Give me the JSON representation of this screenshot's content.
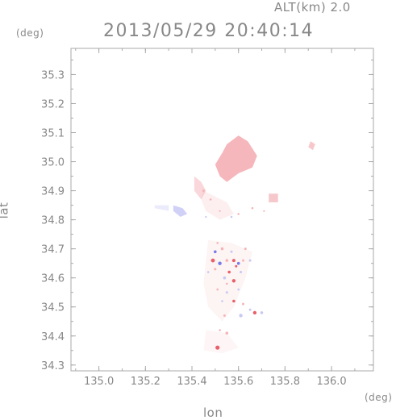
{
  "header": {
    "alt_label": "ALT(km)  2.0",
    "datetime": "2013/05/29  20:40:14"
  },
  "axes": {
    "x_unit": "(deg)",
    "y_unit": "(deg)",
    "xlabel": "lon",
    "ylabel": "lat"
  },
  "chart_data": {
    "type": "scatter",
    "title": "2013/05/29  20:40:14",
    "xlabel": "lon",
    "ylabel": "lat",
    "xlim": [
      134.88,
      136.18
    ],
    "ylim": [
      34.28,
      35.39
    ],
    "x_ticks": [
      135.0,
      135.2,
      135.4,
      135.6,
      135.8,
      136.0
    ],
    "x_tick_labels": [
      "135.0",
      "135.2",
      "135.4",
      "135.6",
      "135.8",
      "136.0"
    ],
    "y_ticks": [
      34.3,
      34.4,
      34.5,
      34.6,
      34.7,
      34.8,
      34.9,
      35.0,
      35.1,
      35.2,
      35.3
    ],
    "y_tick_labels": [
      "34.3",
      "34.4",
      "34.5",
      "34.6",
      "34.7",
      "34.8",
      "34.9",
      "35.0",
      "35.1",
      "35.2",
      "35.3"
    ],
    "grid": false,
    "colors": {
      "positive_strong": "#e8606a",
      "positive_light": "#f6b4b8",
      "negative_strong": "#7a7ae8",
      "negative_light": "#c8c8f2",
      "axis": "#aaaaaa",
      "text": "#888888"
    },
    "regions": [
      {
        "name": "north-mass",
        "polygon": [
          [
            135.55,
            35.06
          ],
          [
            135.6,
            35.09
          ],
          [
            135.64,
            35.07
          ],
          [
            135.68,
            35.02
          ],
          [
            135.66,
            34.98
          ],
          [
            135.6,
            34.96
          ],
          [
            135.55,
            34.93
          ],
          [
            135.52,
            34.95
          ],
          [
            135.5,
            34.99
          ],
          [
            135.53,
            35.03
          ]
        ],
        "sign": "positive",
        "intensity": 0.45
      },
      {
        "name": "west-pink",
        "polygon": [
          [
            135.41,
            34.95
          ],
          [
            135.44,
            34.93
          ],
          [
            135.46,
            34.9
          ],
          [
            135.44,
            34.87
          ],
          [
            135.41,
            34.9
          ]
        ],
        "sign": "positive",
        "intensity": 0.25
      },
      {
        "name": "east-pink",
        "polygon": [
          [
            135.73,
            34.89
          ],
          [
            135.77,
            34.89
          ],
          [
            135.77,
            34.86
          ],
          [
            135.73,
            34.86
          ]
        ],
        "sign": "positive",
        "intensity": 0.35
      },
      {
        "name": "far-east-pink",
        "polygon": [
          [
            135.91,
            35.07
          ],
          [
            135.93,
            35.06
          ],
          [
            135.92,
            35.04
          ],
          [
            135.9,
            35.05
          ]
        ],
        "sign": "positive",
        "intensity": 0.35
      },
      {
        "name": "west-blue",
        "polygon": [
          [
            135.32,
            34.85
          ],
          [
            135.36,
            34.84
          ],
          [
            135.38,
            34.82
          ],
          [
            135.35,
            34.81
          ],
          [
            135.32,
            34.83
          ]
        ],
        "sign": "negative",
        "intensity": 0.35
      },
      {
        "name": "west-faint",
        "polygon": [
          [
            135.24,
            34.85
          ],
          [
            135.3,
            34.85
          ],
          [
            135.3,
            34.83
          ],
          [
            135.24,
            34.84
          ]
        ],
        "sign": "negative",
        "intensity": 0.15
      },
      {
        "name": "mid-faint",
        "polygon": [
          [
            135.45,
            34.9
          ],
          [
            135.5,
            34.88
          ],
          [
            135.55,
            34.86
          ],
          [
            135.58,
            34.82
          ],
          [
            135.52,
            34.8
          ],
          [
            135.46,
            34.83
          ],
          [
            135.44,
            34.87
          ]
        ],
        "sign": "positive",
        "intensity": 0.1
      },
      {
        "name": "central-band",
        "polygon": [
          [
            135.47,
            34.73
          ],
          [
            135.57,
            34.72
          ],
          [
            135.66,
            34.69
          ],
          [
            135.63,
            34.6
          ],
          [
            135.58,
            34.5
          ],
          [
            135.53,
            34.45
          ],
          [
            135.47,
            34.5
          ],
          [
            135.45,
            34.58
          ],
          [
            135.46,
            34.66
          ]
        ],
        "sign": "positive",
        "intensity": 0.07
      },
      {
        "name": "south-tail",
        "polygon": [
          [
            135.46,
            34.42
          ],
          [
            135.55,
            34.41
          ],
          [
            135.6,
            34.36
          ],
          [
            135.53,
            34.34
          ],
          [
            135.45,
            34.35
          ]
        ],
        "sign": "positive",
        "intensity": 0.06
      }
    ],
    "points": [
      {
        "x": 135.51,
        "y": 34.36,
        "v": 0.9,
        "s": 1.2
      },
      {
        "x": 135.55,
        "y": 34.41,
        "v": 0.5,
        "s": 0.8
      },
      {
        "x": 135.52,
        "y": 34.42,
        "v": 0.4,
        "s": 0.6
      },
      {
        "x": 135.61,
        "y": 34.47,
        "v": -0.5,
        "s": 1.0
      },
      {
        "x": 135.67,
        "y": 34.48,
        "v": 0.8,
        "s": 1.0
      },
      {
        "x": 135.7,
        "y": 34.48,
        "v": -0.6,
        "s": 0.8
      },
      {
        "x": 135.65,
        "y": 34.49,
        "v": -0.4,
        "s": 0.7
      },
      {
        "x": 135.54,
        "y": 34.47,
        "v": 0.6,
        "s": 0.7
      },
      {
        "x": 135.62,
        "y": 34.51,
        "v": 0.5,
        "s": 0.7
      },
      {
        "x": 135.58,
        "y": 34.52,
        "v": 0.7,
        "s": 0.8
      },
      {
        "x": 135.55,
        "y": 34.55,
        "v": -0.5,
        "s": 0.7
      },
      {
        "x": 135.51,
        "y": 34.56,
        "v": 0.6,
        "s": 0.6
      },
      {
        "x": 135.58,
        "y": 34.59,
        "v": 0.9,
        "s": 1.0
      },
      {
        "x": 135.56,
        "y": 34.62,
        "v": 0.7,
        "s": 0.8
      },
      {
        "x": 135.54,
        "y": 34.6,
        "v": -0.6,
        "s": 0.8
      },
      {
        "x": 135.61,
        "y": 34.62,
        "v": -0.5,
        "s": 0.7
      },
      {
        "x": 135.5,
        "y": 34.63,
        "v": 0.5,
        "s": 0.7
      },
      {
        "x": 135.49,
        "y": 34.66,
        "v": 0.9,
        "s": 1.1
      },
      {
        "x": 135.52,
        "y": 34.65,
        "v": -0.8,
        "s": 1.0
      },
      {
        "x": 135.55,
        "y": 34.66,
        "v": 0.6,
        "s": 0.8
      },
      {
        "x": 135.58,
        "y": 34.66,
        "v": 0.8,
        "s": 0.9
      },
      {
        "x": 135.6,
        "y": 34.65,
        "v": -0.7,
        "s": 0.8
      },
      {
        "x": 135.62,
        "y": 34.66,
        "v": 0.5,
        "s": 0.7
      },
      {
        "x": 135.65,
        "y": 34.66,
        "v": -0.6,
        "s": 0.7
      },
      {
        "x": 135.5,
        "y": 34.69,
        "v": -0.7,
        "s": 0.8
      },
      {
        "x": 135.53,
        "y": 34.7,
        "v": 0.6,
        "s": 0.8
      },
      {
        "x": 135.57,
        "y": 34.69,
        "v": -0.5,
        "s": 0.7
      },
      {
        "x": 135.63,
        "y": 34.7,
        "v": 0.5,
        "s": 0.7
      },
      {
        "x": 135.51,
        "y": 34.72,
        "v": 0.4,
        "s": 0.6
      },
      {
        "x": 135.59,
        "y": 34.64,
        "v": 0.7,
        "s": 0.7
      },
      {
        "x": 135.47,
        "y": 34.62,
        "v": -0.4,
        "s": 0.6
      },
      {
        "x": 135.55,
        "y": 34.58,
        "v": 0.4,
        "s": 0.6
      },
      {
        "x": 135.53,
        "y": 34.52,
        "v": -0.4,
        "s": 0.6
      },
      {
        "x": 135.6,
        "y": 34.56,
        "v": -0.4,
        "s": 0.6
      },
      {
        "x": 135.45,
        "y": 34.9,
        "v": 0.6,
        "s": 0.7
      },
      {
        "x": 135.48,
        "y": 34.87,
        "v": 0.5,
        "s": 0.6
      },
      {
        "x": 135.6,
        "y": 34.82,
        "v": 0.6,
        "s": 0.6
      },
      {
        "x": 135.57,
        "y": 34.81,
        "v": -0.4,
        "s": 0.6
      },
      {
        "x": 135.66,
        "y": 34.84,
        "v": 0.4,
        "s": 0.6
      },
      {
        "x": 135.52,
        "y": 34.83,
        "v": 0.3,
        "s": 0.5
      },
      {
        "x": 135.71,
        "y": 34.83,
        "v": 0.4,
        "s": 0.5
      },
      {
        "x": 135.46,
        "y": 34.81,
        "v": -0.3,
        "s": 0.5
      },
      {
        "x": 135.56,
        "y": 34.95,
        "v": 0.6,
        "s": 0.6
      },
      {
        "x": 135.62,
        "y": 35.05,
        "v": 0.5,
        "s": 0.6
      },
      {
        "x": 135.66,
        "y": 35.0,
        "v": 0.5,
        "s": 0.6
      }
    ]
  }
}
